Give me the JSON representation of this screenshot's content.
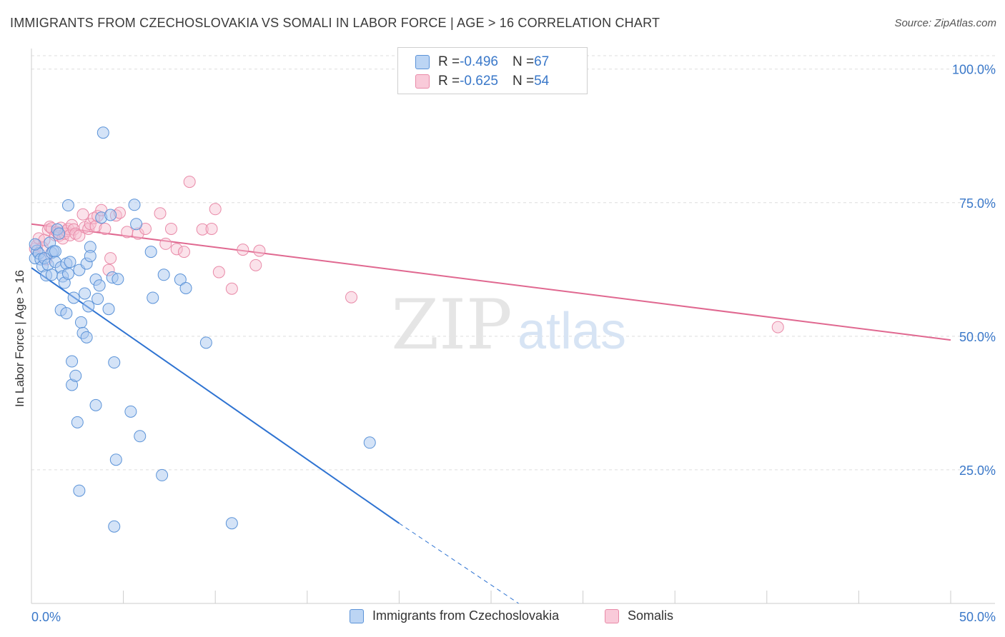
{
  "header": {
    "title": "IMMIGRANTS FROM CZECHOSLOVAKIA VS SOMALI IN LABOR FORCE | AGE > 16 CORRELATION CHART",
    "source": "Source: ZipAtlas.com"
  },
  "legend": {
    "blue": {
      "r_label": "R = ",
      "r_value": "-0.496",
      "n_label": "N = ",
      "n_value": "67"
    },
    "pink": {
      "r_label": "R = ",
      "r_value": "-0.625",
      "n_label": "N = ",
      "n_value": "54"
    }
  },
  "watermark": {
    "zip": "ZIP",
    "atlas": "atlas"
  },
  "colors": {
    "blue_fill": "#a9c8f0",
    "blue_stroke": "#5b93d8",
    "blue_line": "#2e73d2",
    "pink_fill": "#f6bfd0",
    "pink_stroke": "#e98aa8",
    "pink_line": "#e06890",
    "axis_text": "#3a78c9",
    "grid": "#dddddd"
  },
  "chart_data": {
    "type": "scatter",
    "title": "IMMIGRANTS FROM CZECHOSLOVAKIA VS SOMALI IN LABOR FORCE | AGE > 16 CORRELATION CHART",
    "xlabel": "",
    "ylabel": "In Labor Force | Age > 16",
    "xlim": [
      0,
      50
    ],
    "ylim": [
      0,
      102.5
    ],
    "x_tick_labels": [
      "0.0%",
      "50.0%"
    ],
    "y_ticks": [
      25,
      50,
      75,
      100
    ],
    "y_tick_labels": [
      "25.0%",
      "50.0%",
      "75.0%",
      "100.0%"
    ],
    "grid": true,
    "legend_position": "top-center",
    "series": [
      {
        "name": "Immigrants from Czechoslovakia",
        "color": "#a9c8f0",
        "points": [
          [
            0.2,
            64.6
          ],
          [
            0.3,
            66.0
          ],
          [
            0.4,
            65.5
          ],
          [
            0.5,
            64.4
          ],
          [
            0.6,
            63.1
          ],
          [
            0.7,
            64.6
          ],
          [
            0.8,
            61.4
          ],
          [
            0.9,
            63.4
          ],
          [
            1.0,
            67.5
          ],
          [
            1.1,
            65.6
          ],
          [
            1.1,
            61.5
          ],
          [
            1.2,
            65.9
          ],
          [
            1.3,
            65.9
          ],
          [
            1.3,
            63.9
          ],
          [
            1.4,
            70.0
          ],
          [
            1.5,
            69.2
          ],
          [
            1.6,
            62.9
          ],
          [
            1.6,
            54.9
          ],
          [
            1.7,
            61.2
          ],
          [
            1.8,
            60.0
          ],
          [
            1.9,
            63.6
          ],
          [
            1.9,
            54.3
          ],
          [
            2.0,
            74.5
          ],
          [
            2.0,
            61.7
          ],
          [
            2.1,
            63.9
          ],
          [
            2.2,
            45.3
          ],
          [
            2.2,
            40.9
          ],
          [
            2.3,
            57.2
          ],
          [
            2.4,
            42.6
          ],
          [
            2.5,
            33.9
          ],
          [
            2.6,
            62.4
          ],
          [
            2.6,
            21.1
          ],
          [
            2.7,
            52.6
          ],
          [
            2.8,
            50.6
          ],
          [
            2.9,
            58.0
          ],
          [
            3.0,
            63.6
          ],
          [
            3.0,
            49.8
          ],
          [
            3.1,
            55.6
          ],
          [
            3.2,
            66.7
          ],
          [
            3.2,
            65.0
          ],
          [
            3.5,
            60.6
          ],
          [
            3.5,
            37.1
          ],
          [
            3.6,
            57.0
          ],
          [
            3.7,
            59.5
          ],
          [
            3.8,
            72.2
          ],
          [
            3.9,
            88.1
          ],
          [
            4.2,
            55.1
          ],
          [
            4.3,
            72.7
          ],
          [
            4.4,
            61.0
          ],
          [
            4.5,
            45.1
          ],
          [
            4.5,
            14.4
          ],
          [
            4.6,
            26.9
          ],
          [
            4.7,
            60.7
          ],
          [
            5.4,
            35.9
          ],
          [
            5.6,
            74.6
          ],
          [
            5.7,
            71.0
          ],
          [
            5.9,
            31.3
          ],
          [
            6.5,
            65.8
          ],
          [
            6.6,
            57.2
          ],
          [
            7.1,
            24.0
          ],
          [
            7.2,
            61.5
          ],
          [
            8.1,
            60.6
          ],
          [
            8.4,
            59.0
          ],
          [
            9.5,
            48.8
          ],
          [
            10.9,
            15.0
          ],
          [
            18.4,
            30.1
          ],
          [
            0.2,
            67.2
          ]
        ]
      },
      {
        "name": "Somalis",
        "color": "#f6bfd0",
        "points": [
          [
            0.2,
            66.4
          ],
          [
            0.3,
            67.0
          ],
          [
            0.4,
            68.3
          ],
          [
            0.6,
            66.6
          ],
          [
            0.7,
            68.0
          ],
          [
            0.8,
            64.4
          ],
          [
            0.9,
            69.9
          ],
          [
            1.0,
            70.5
          ],
          [
            1.1,
            70.2
          ],
          [
            1.3,
            68.9
          ],
          [
            1.4,
            69.5
          ],
          [
            1.5,
            68.8
          ],
          [
            1.6,
            70.3
          ],
          [
            1.7,
            68.3
          ],
          [
            1.8,
            69.2
          ],
          [
            1.9,
            69.7
          ],
          [
            2.0,
            70.1
          ],
          [
            2.1,
            68.9
          ],
          [
            2.2,
            70.8
          ],
          [
            2.3,
            70.0
          ],
          [
            2.4,
            69.2
          ],
          [
            2.6,
            68.8
          ],
          [
            2.8,
            72.8
          ],
          [
            2.9,
            70.4
          ],
          [
            3.1,
            70.1
          ],
          [
            3.2,
            71.0
          ],
          [
            3.4,
            72.1
          ],
          [
            3.5,
            70.6
          ],
          [
            3.6,
            72.5
          ],
          [
            3.8,
            73.6
          ],
          [
            4.0,
            70.1
          ],
          [
            4.2,
            62.4
          ],
          [
            4.3,
            64.6
          ],
          [
            4.6,
            72.6
          ],
          [
            4.8,
            73.1
          ],
          [
            5.2,
            69.5
          ],
          [
            5.8,
            69.2
          ],
          [
            6.2,
            70.1
          ],
          [
            7.0,
            73.0
          ],
          [
            7.3,
            67.3
          ],
          [
            7.6,
            70.1
          ],
          [
            7.9,
            66.3
          ],
          [
            8.3,
            65.8
          ],
          [
            8.6,
            78.9
          ],
          [
            9.3,
            70.0
          ],
          [
            9.8,
            70.1
          ],
          [
            10.0,
            73.8
          ],
          [
            10.2,
            62.0
          ],
          [
            10.9,
            58.9
          ],
          [
            11.5,
            66.2
          ],
          [
            12.2,
            63.3
          ],
          [
            12.4,
            66.0
          ],
          [
            17.4,
            57.3
          ],
          [
            40.6,
            51.7
          ]
        ]
      }
    ],
    "trendlines": [
      {
        "series": "Immigrants from Czechoslovakia",
        "solid_from": [
          0,
          62.8
        ],
        "solid_to": [
          20,
          15.0
        ],
        "dashed_to": [
          26.5,
          0
        ]
      },
      {
        "series": "Somalis",
        "from": [
          0,
          71.0
        ],
        "to": [
          50,
          49.3
        ]
      }
    ]
  }
}
